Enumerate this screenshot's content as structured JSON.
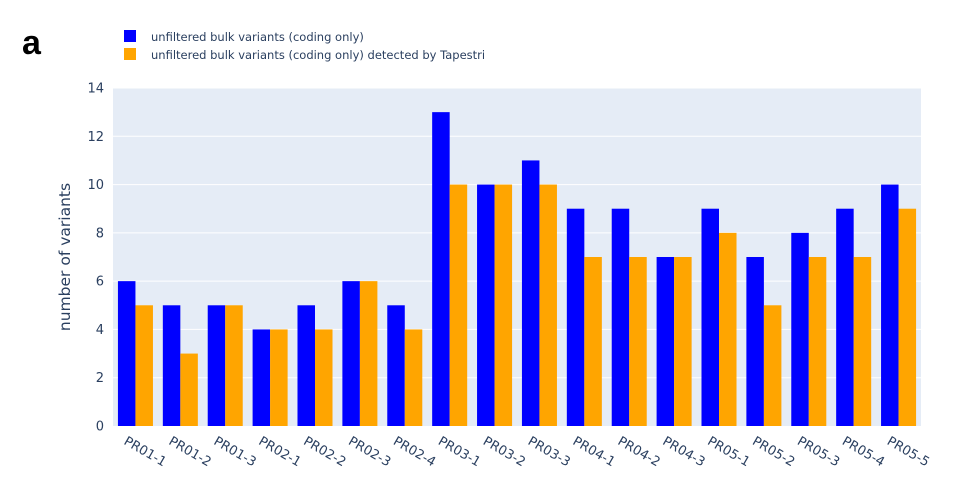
{
  "panel_label": "a",
  "chart_data": {
    "type": "bar",
    "title": "",
    "xlabel": "",
    "ylabel": "number of variants",
    "ylim": [
      0,
      14
    ],
    "yticks": [
      0,
      2,
      4,
      6,
      8,
      10,
      12,
      14
    ],
    "grid": true,
    "legend_position": "top-left",
    "background_color": "#e5ecf6",
    "categories": [
      "PR01-1",
      "PR01-2",
      "PR01-3",
      "PR02-1",
      "PR02-2",
      "PR02-3",
      "PR02-4",
      "PR03-1",
      "PR03-2",
      "PR03-3",
      "PR04-1",
      "PR04-2",
      "PR04-3",
      "PR05-1",
      "PR05-2",
      "PR05-3",
      "PR05-4",
      "PR05-5"
    ],
    "series": [
      {
        "name": "unfiltered bulk variants (coding only)",
        "color": "#0000ff",
        "values": [
          6,
          5,
          5,
          4,
          5,
          6,
          5,
          13,
          10,
          11,
          9,
          9,
          7,
          9,
          7,
          8,
          9,
          10
        ]
      },
      {
        "name": "unfiltered bulk variants (coding only) detected by Tapestri",
        "color": "#ffa500",
        "values": [
          5,
          3,
          5,
          4,
          4,
          6,
          4,
          10,
          10,
          10,
          7,
          7,
          7,
          8,
          5,
          7,
          7,
          9
        ]
      }
    ]
  }
}
